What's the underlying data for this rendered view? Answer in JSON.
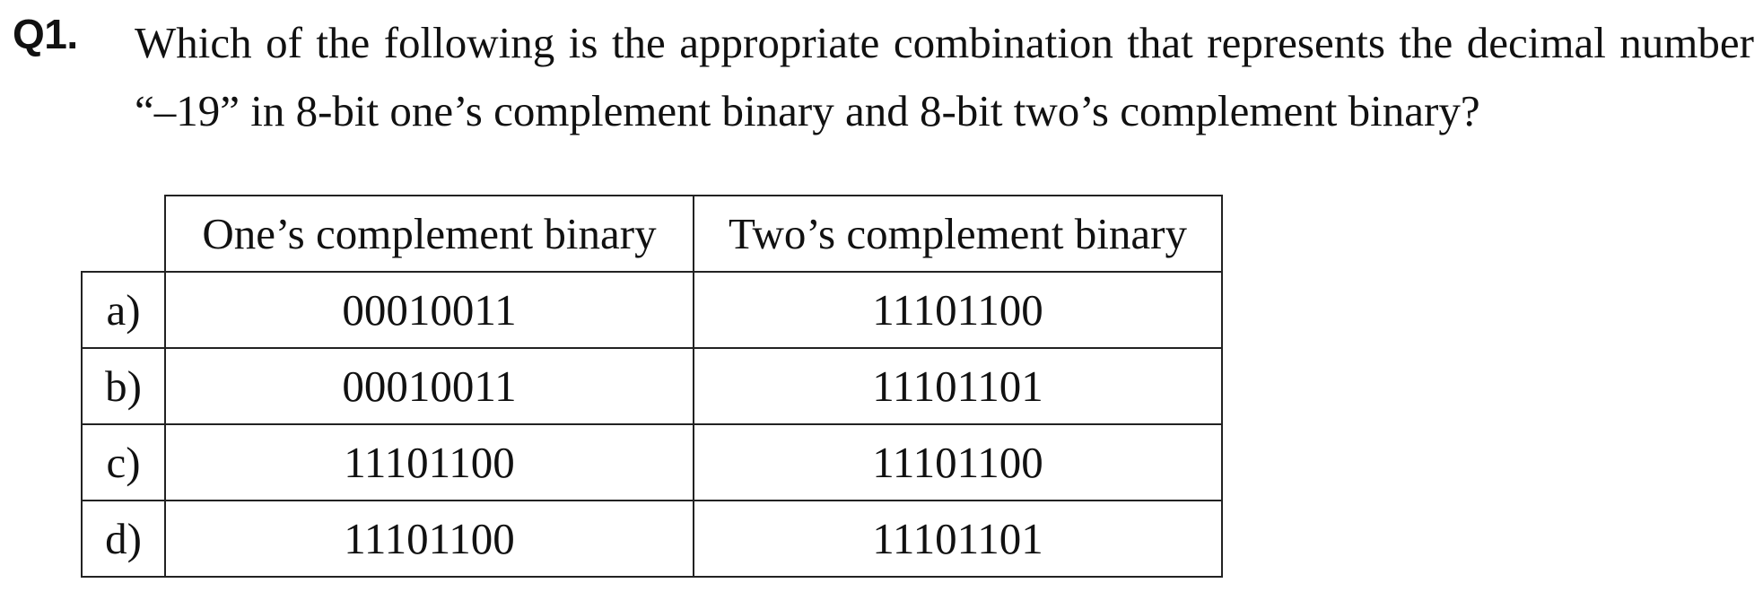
{
  "question": {
    "number": "Q1.",
    "text": "Which of the following is the appropriate combination that represents the decimal number “–19” in 8-bit one’s complement binary and 8-bit two’s complement binary?"
  },
  "table": {
    "headers": [
      "One’s complement binary",
      "Two’s complement binary"
    ],
    "rows": [
      {
        "label": "a)",
        "ones": "00010011",
        "twos": "11101100"
      },
      {
        "label": "b)",
        "ones": "00010011",
        "twos": "11101101"
      },
      {
        "label": "c)",
        "ones": "11101100",
        "twos": "11101100"
      },
      {
        "label": "d)",
        "ones": "11101100",
        "twos": "11101101"
      }
    ]
  }
}
